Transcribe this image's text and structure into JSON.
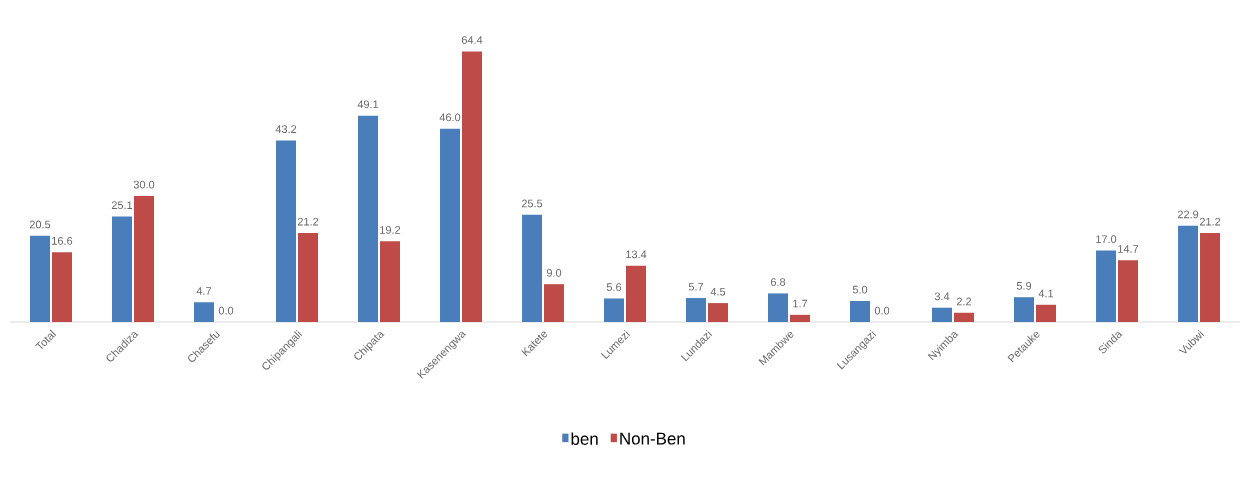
{
  "chart_data": {
    "type": "bar",
    "categories": [
      "Total",
      "Chadiza",
      "Chasefu",
      "Chipangali",
      "Chipata",
      "Kasenengwa",
      "Katete",
      "Lumezi",
      "Lundazi",
      "Mambwe",
      "Lusangazi",
      "Nyimba",
      "Petauke",
      "Sinda",
      "Vubwi"
    ],
    "series": [
      {
        "name": "ben",
        "color": "#4a7ebb",
        "values": [
          20.5,
          25.1,
          4.7,
          43.2,
          49.1,
          46,
          25.5,
          5.6,
          5.7,
          6.8,
          5,
          3.4,
          5.9,
          17,
          22.9
        ],
        "value_labels": [
          "20.5",
          "25.1",
          "4.7",
          "43.2",
          "49.1",
          "46.0",
          "25.5",
          "5.6",
          "5.7",
          "6.8",
          "5.0",
          "3.4",
          "5.9",
          "17.0",
          "22.9"
        ]
      },
      {
        "name": "Non-Ben",
        "color": "#be4b48",
        "values": [
          16.6,
          30,
          0,
          21.2,
          19.2,
          64.4,
          9,
          13.4,
          4.5,
          1.7,
          0,
          2.2,
          4.1,
          14.7,
          21.2
        ],
        "value_labels": [
          "16.6",
          "30.0",
          "0.0",
          "21.2",
          "19.2",
          "64.4",
          "9.0",
          "13.4",
          "4.5",
          "1.7",
          "0.0",
          "2.2",
          "4.1",
          "14.7",
          "21.2"
        ]
      }
    ],
    "legend": "bottom"
  }
}
